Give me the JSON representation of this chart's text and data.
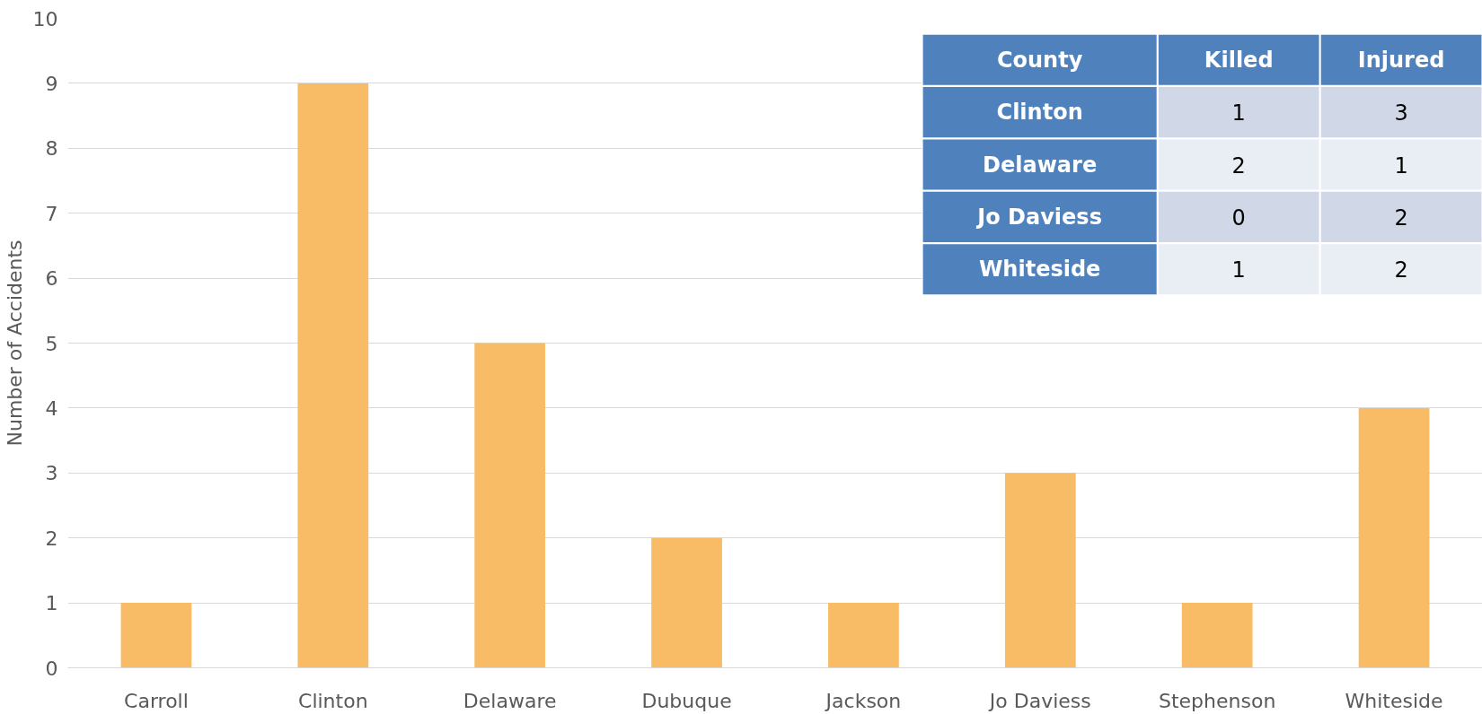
{
  "chart_data": [
    {
      "type": "bar",
      "ylabel": "Number of Accidents",
      "categories": [
        "Carroll",
        "Clinton",
        "Delaware",
        "Dubuque",
        "Jackson",
        "Jo Daviess",
        "Stephenson",
        "Whiteside"
      ],
      "values": [
        1,
        9,
        5,
        2,
        1,
        3,
        1,
        4
      ],
      "color": "#f9bc66",
      "ylim": [
        0,
        10
      ],
      "yticks": [
        0,
        1,
        2,
        3,
        4,
        5,
        6,
        7,
        8,
        9,
        10
      ],
      "grid": "y"
    },
    {
      "type": "heatmap",
      "ylabel": "County",
      "categories": [
        "Killed",
        "Injured"
      ],
      "y_categories": [
        "Clinton",
        "Delaware",
        "Jo Daviess",
        "Whiteside"
      ],
      "cells": [
        [
          1,
          3
        ],
        [
          2,
          1
        ],
        [
          0,
          2
        ],
        [
          1,
          2
        ]
      ],
      "data_labels": true
    }
  ]
}
